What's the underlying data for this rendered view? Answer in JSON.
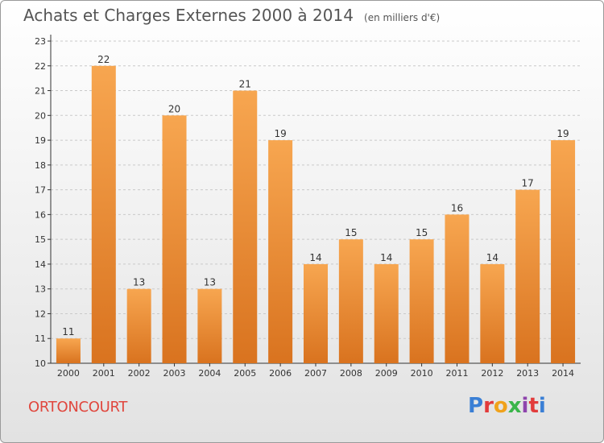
{
  "title": "Achats et Charges Externes 2000 à 2014",
  "subtitle": "(en milliers d'€)",
  "commune": "ORTONCOURT",
  "brand": "Proxiti",
  "colors": {
    "bar_top": "#f7a650",
    "bar_bottom": "#d9731f",
    "axis": "#333333",
    "grid": "#c9c9c9",
    "commune": "#e0473e"
  },
  "chart_data": {
    "type": "bar",
    "categories": [
      "2000",
      "2001",
      "2002",
      "2003",
      "2004",
      "2005",
      "2006",
      "2007",
      "2008",
      "2009",
      "2010",
      "2011",
      "2012",
      "2013",
      "2014"
    ],
    "values": [
      11,
      22,
      13,
      20,
      13,
      21,
      19,
      14,
      15,
      14,
      15,
      16,
      14,
      17,
      19
    ],
    "ylim": [
      10,
      23
    ],
    "yticks": [
      10,
      11,
      12,
      13,
      14,
      15,
      16,
      17,
      18,
      19,
      20,
      21,
      22,
      23
    ],
    "grid": "horizontal-dashed",
    "data_labels": true
  }
}
